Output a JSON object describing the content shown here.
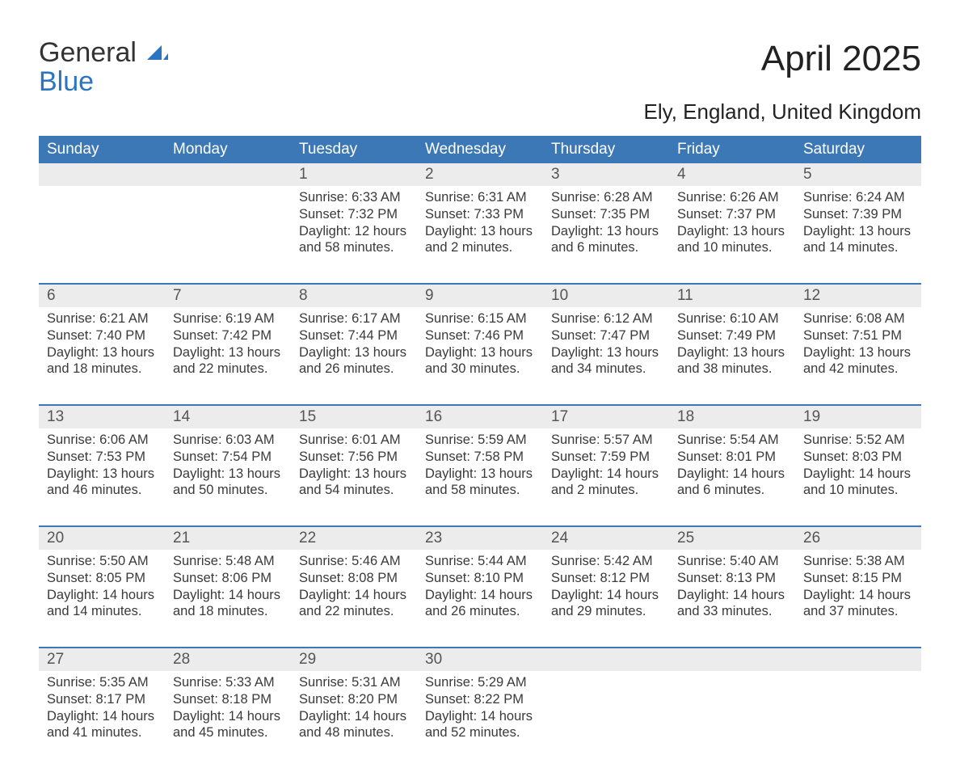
{
  "logo": {
    "line1": "General",
    "line2": "Blue",
    "accent_color": "#2a74c4"
  },
  "title": "April 2025",
  "location": "Ely, England, United Kingdom",
  "colors": {
    "header_bg": "#3b78b5",
    "header_text": "#ffffff",
    "daynum_bg": "#ececec",
    "text": "#333333",
    "week_border": "#3b78b5"
  },
  "days_of_week": [
    "Sunday",
    "Monday",
    "Tuesday",
    "Wednesday",
    "Thursday",
    "Friday",
    "Saturday"
  ],
  "labels": {
    "sunrise": "Sunrise:",
    "sunset": "Sunset:",
    "daylight": "Daylight:"
  },
  "weeks": [
    [
      {
        "n": "",
        "empty": true
      },
      {
        "n": "",
        "empty": true
      },
      {
        "n": "1",
        "sunrise": "6:33 AM",
        "sunset": "7:32 PM",
        "daylight1": "12 hours",
        "daylight2": "and 58 minutes."
      },
      {
        "n": "2",
        "sunrise": "6:31 AM",
        "sunset": "7:33 PM",
        "daylight1": "13 hours",
        "daylight2": "and 2 minutes."
      },
      {
        "n": "3",
        "sunrise": "6:28 AM",
        "sunset": "7:35 PM",
        "daylight1": "13 hours",
        "daylight2": "and 6 minutes."
      },
      {
        "n": "4",
        "sunrise": "6:26 AM",
        "sunset": "7:37 PM",
        "daylight1": "13 hours",
        "daylight2": "and 10 minutes."
      },
      {
        "n": "5",
        "sunrise": "6:24 AM",
        "sunset": "7:39 PM",
        "daylight1": "13 hours",
        "daylight2": "and 14 minutes."
      }
    ],
    [
      {
        "n": "6",
        "sunrise": "6:21 AM",
        "sunset": "7:40 PM",
        "daylight1": "13 hours",
        "daylight2": "and 18 minutes."
      },
      {
        "n": "7",
        "sunrise": "6:19 AM",
        "sunset": "7:42 PM",
        "daylight1": "13 hours",
        "daylight2": "and 22 minutes."
      },
      {
        "n": "8",
        "sunrise": "6:17 AM",
        "sunset": "7:44 PM",
        "daylight1": "13 hours",
        "daylight2": "and 26 minutes."
      },
      {
        "n": "9",
        "sunrise": "6:15 AM",
        "sunset": "7:46 PM",
        "daylight1": "13 hours",
        "daylight2": "and 30 minutes."
      },
      {
        "n": "10",
        "sunrise": "6:12 AM",
        "sunset": "7:47 PM",
        "daylight1": "13 hours",
        "daylight2": "and 34 minutes."
      },
      {
        "n": "11",
        "sunrise": "6:10 AM",
        "sunset": "7:49 PM",
        "daylight1": "13 hours",
        "daylight2": "and 38 minutes."
      },
      {
        "n": "12",
        "sunrise": "6:08 AM",
        "sunset": "7:51 PM",
        "daylight1": "13 hours",
        "daylight2": "and 42 minutes."
      }
    ],
    [
      {
        "n": "13",
        "sunrise": "6:06 AM",
        "sunset": "7:53 PM",
        "daylight1": "13 hours",
        "daylight2": "and 46 minutes."
      },
      {
        "n": "14",
        "sunrise": "6:03 AM",
        "sunset": "7:54 PM",
        "daylight1": "13 hours",
        "daylight2": "and 50 minutes."
      },
      {
        "n": "15",
        "sunrise": "6:01 AM",
        "sunset": "7:56 PM",
        "daylight1": "13 hours",
        "daylight2": "and 54 minutes."
      },
      {
        "n": "16",
        "sunrise": "5:59 AM",
        "sunset": "7:58 PM",
        "daylight1": "13 hours",
        "daylight2": "and 58 minutes."
      },
      {
        "n": "17",
        "sunrise": "5:57 AM",
        "sunset": "7:59 PM",
        "daylight1": "14 hours",
        "daylight2": "and 2 minutes."
      },
      {
        "n": "18",
        "sunrise": "5:54 AM",
        "sunset": "8:01 PM",
        "daylight1": "14 hours",
        "daylight2": "and 6 minutes."
      },
      {
        "n": "19",
        "sunrise": "5:52 AM",
        "sunset": "8:03 PM",
        "daylight1": "14 hours",
        "daylight2": "and 10 minutes."
      }
    ],
    [
      {
        "n": "20",
        "sunrise": "5:50 AM",
        "sunset": "8:05 PM",
        "daylight1": "14 hours",
        "daylight2": "and 14 minutes."
      },
      {
        "n": "21",
        "sunrise": "5:48 AM",
        "sunset": "8:06 PM",
        "daylight1": "14 hours",
        "daylight2": "and 18 minutes."
      },
      {
        "n": "22",
        "sunrise": "5:46 AM",
        "sunset": "8:08 PM",
        "daylight1": "14 hours",
        "daylight2": "and 22 minutes."
      },
      {
        "n": "23",
        "sunrise": "5:44 AM",
        "sunset": "8:10 PM",
        "daylight1": "14 hours",
        "daylight2": "and 26 minutes."
      },
      {
        "n": "24",
        "sunrise": "5:42 AM",
        "sunset": "8:12 PM",
        "daylight1": "14 hours",
        "daylight2": "and 29 minutes."
      },
      {
        "n": "25",
        "sunrise": "5:40 AM",
        "sunset": "8:13 PM",
        "daylight1": "14 hours",
        "daylight2": "and 33 minutes."
      },
      {
        "n": "26",
        "sunrise": "5:38 AM",
        "sunset": "8:15 PM",
        "daylight1": "14 hours",
        "daylight2": "and 37 minutes."
      }
    ],
    [
      {
        "n": "27",
        "sunrise": "5:35 AM",
        "sunset": "8:17 PM",
        "daylight1": "14 hours",
        "daylight2": "and 41 minutes."
      },
      {
        "n": "28",
        "sunrise": "5:33 AM",
        "sunset": "8:18 PM",
        "daylight1": "14 hours",
        "daylight2": "and 45 minutes."
      },
      {
        "n": "29",
        "sunrise": "5:31 AM",
        "sunset": "8:20 PM",
        "daylight1": "14 hours",
        "daylight2": "and 48 minutes."
      },
      {
        "n": "30",
        "sunrise": "5:29 AM",
        "sunset": "8:22 PM",
        "daylight1": "14 hours",
        "daylight2": "and 52 minutes."
      },
      {
        "n": "",
        "empty": true
      },
      {
        "n": "",
        "empty": true
      },
      {
        "n": "",
        "empty": true
      }
    ]
  ]
}
